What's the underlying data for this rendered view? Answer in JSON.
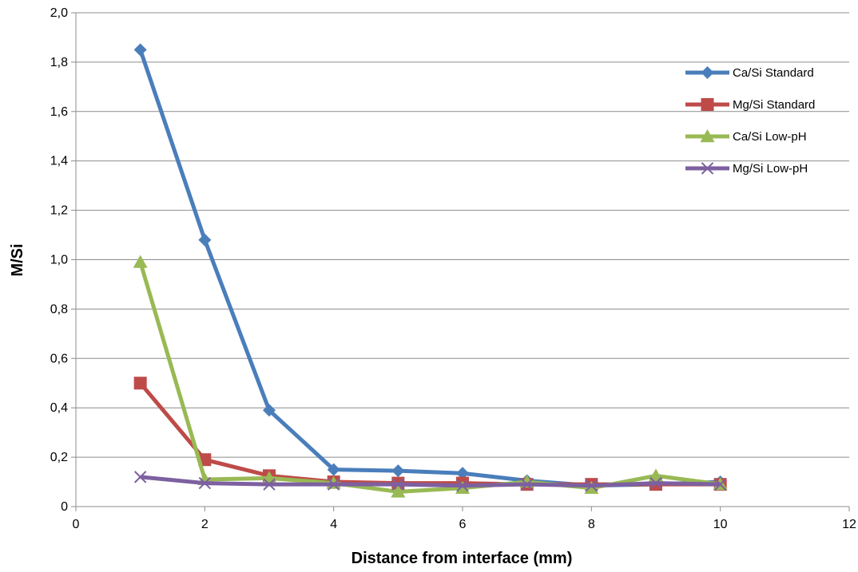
{
  "chart_data": {
    "type": "line",
    "title": "",
    "xlabel": "Distance from interface (mm)",
    "ylabel": "M/Si",
    "xlim": [
      0,
      12
    ],
    "ylim": [
      0,
      2.0
    ],
    "x_ticks": [
      0,
      2,
      4,
      6,
      8,
      10,
      12
    ],
    "y_ticks": [
      0,
      0.2,
      0.4,
      0.6,
      0.8,
      1.0,
      1.2,
      1.4,
      1.6,
      1.8,
      2.0
    ],
    "x_tick_labels": [
      "0",
      "2",
      "4",
      "6",
      "8",
      "10",
      "12"
    ],
    "y_tick_labels": [
      "0",
      "0,2",
      "0,4",
      "0,6",
      "0,8",
      "1,0",
      "1,2",
      "1,4",
      "1,6",
      "1,8",
      "2,0"
    ],
    "grid": "horizontal",
    "legend_position": "top-right",
    "x": [
      1,
      2,
      3,
      4,
      5,
      6,
      7,
      8,
      9,
      10
    ],
    "series": [
      {
        "name": "Ca/Si Standard",
        "color": "#4a7ebb",
        "marker": "diamond",
        "values": [
          1.85,
          1.08,
          0.39,
          0.15,
          0.145,
          0.135,
          0.105,
          0.085,
          0.09,
          0.1
        ]
      },
      {
        "name": "Mg/Si Standard",
        "color": "#be4b48",
        "marker": "square",
        "values": [
          0.5,
          0.19,
          0.125,
          0.1,
          0.095,
          0.095,
          0.09,
          0.09,
          0.09,
          0.09
        ]
      },
      {
        "name": "Ca/Si Low-pH",
        "color": "#98b954",
        "marker": "triangle",
        "values": [
          0.99,
          0.11,
          0.115,
          0.095,
          0.06,
          0.075,
          0.1,
          0.075,
          0.125,
          0.09
        ]
      },
      {
        "name": "Mg/Si Low-pH",
        "color": "#7d60a0",
        "marker": "x",
        "values": [
          0.12,
          0.095,
          0.09,
          0.09,
          0.09,
          0.085,
          0.09,
          0.085,
          0.095,
          0.09
        ]
      }
    ]
  }
}
